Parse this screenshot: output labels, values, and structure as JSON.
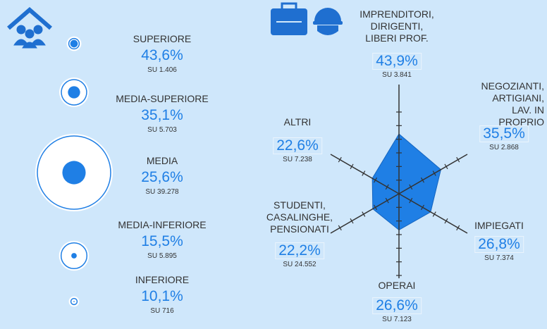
{
  "chart_data": [
    {
      "type": "bubble",
      "categories": [
        "SUPERIORE",
        "MEDIA-SUPERIORE",
        "MEDIA",
        "MEDIA-INFERIORE",
        "INFERIORE"
      ],
      "values": [
        43.6,
        35.1,
        25.6,
        15.5,
        10.1
      ],
      "value_labels": [
        "43,6%",
        "35,1%",
        "25,6%",
        "15,5%",
        "10,1%"
      ],
      "bases": [
        1406,
        5703,
        39278,
        5895,
        716
      ],
      "base_labels": [
        "SU 1.406",
        "SU 5.703",
        "SU 39.278",
        "SU 5.895",
        "SU 716"
      ],
      "color": "#1f7fe5"
    },
    {
      "type": "radar",
      "categories": [
        "IMPRENDITORI,\nDIRIGENTI,\nLIBERI PROF.",
        "NEGOZIANTI,\nARTIGIANI,\nLAV. IN PROPRIO",
        "IMPIEGATI",
        "OPERAI",
        "STUDENTI,\nCASALINGHE,\nPENSIONATI",
        "ALTRI"
      ],
      "values": [
        43.9,
        35.5,
        26.8,
        26.6,
        22.2,
        22.6
      ],
      "value_labels": [
        "43,9%",
        "35,5%",
        "26,8%",
        "26,6%",
        "22,2%",
        "22,6%"
      ],
      "base_labels": [
        "SU 3.841",
        "SU 2.868",
        "SU 7.374",
        "SU 7.123",
        "SU 24.552",
        "SU 7.238"
      ],
      "rlim": [
        0,
        60
      ],
      "rticks": [
        10,
        20,
        30,
        40,
        50,
        60
      ],
      "color": "#1f7fe5"
    }
  ]
}
